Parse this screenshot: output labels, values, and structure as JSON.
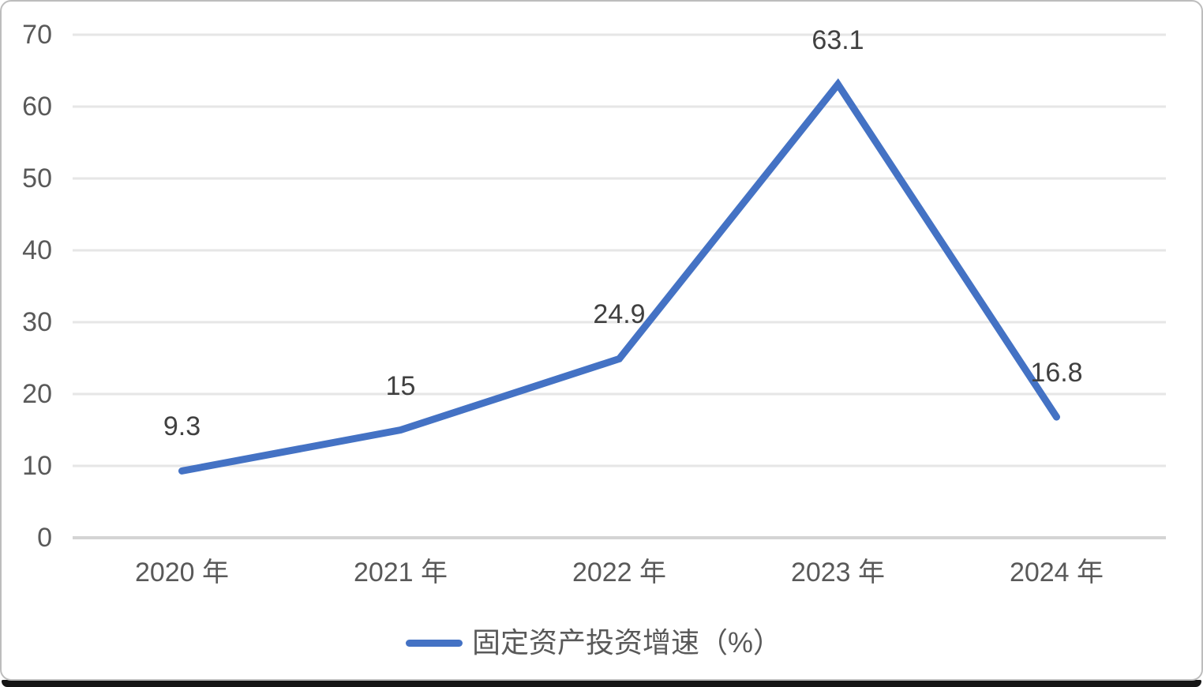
{
  "chart_data": {
    "type": "line",
    "title": "",
    "categories": [
      "2020 年",
      "2021 年",
      "2022 年",
      "2023 年",
      "2024 年"
    ],
    "series": [
      {
        "name": "固定资产投资增速（%）",
        "values": [
          9.3,
          15,
          24.9,
          63.1,
          16.8
        ]
      }
    ],
    "data_labels": [
      "9.3",
      "15",
      "24.9",
      "63.1",
      "16.8"
    ],
    "ylim": [
      0,
      70
    ],
    "yticks": [
      0,
      10,
      20,
      30,
      40,
      50,
      60,
      70
    ],
    "grid": true,
    "legend_position": "bottom-center",
    "colors": {
      "line": "#4472C4",
      "gridline": "#E6E6E6",
      "axis_line": "#D4D4D4",
      "axis_label": "#595959",
      "data_label": "#404040",
      "panel_border": "#BDBDBD",
      "bottom_edge": "#151515",
      "background": "#FFFFFF"
    }
  }
}
